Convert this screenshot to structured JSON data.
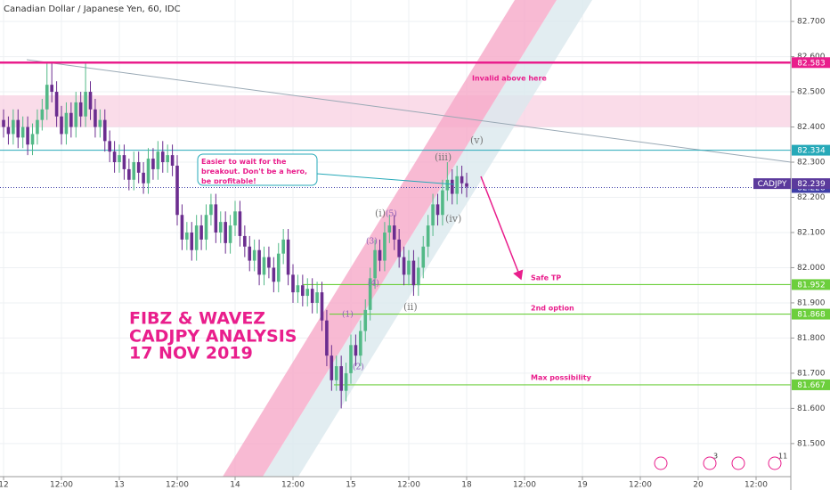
{
  "chart_data": {
    "type": "candlestick",
    "title": "Canadian Dollar / Japanese Yen, 60, IDC",
    "up_color": "#53b987",
    "down_color": "#6b2d8f",
    "x": [
      0,
      1,
      2,
      3,
      4,
      5,
      6,
      7,
      8,
      9,
      10,
      11,
      12,
      13,
      14,
      15,
      16,
      17,
      18,
      19,
      20,
      21,
      22,
      23,
      24,
      25,
      26,
      27,
      28,
      29,
      30,
      31,
      32,
      33,
      34,
      35,
      36,
      37,
      38,
      39,
      40,
      41,
      42,
      43,
      44,
      45,
      46,
      47,
      48,
      49,
      50,
      51,
      52,
      53,
      54,
      55,
      56,
      57,
      58,
      59,
      60,
      61,
      62,
      63,
      64,
      65,
      66,
      67,
      68,
      69,
      70,
      71,
      72,
      73,
      74,
      75,
      76,
      77,
      78,
      79,
      80,
      81,
      82,
      83,
      84,
      85,
      86,
      87,
      88,
      89,
      90,
      91,
      92,
      93,
      94,
      95,
      96
    ],
    "candles": [
      [
        82.42,
        82.45,
        82.37,
        82.4
      ],
      [
        82.4,
        82.43,
        82.35,
        82.38
      ],
      [
        82.38,
        82.45,
        82.35,
        82.42
      ],
      [
        82.42,
        82.45,
        82.34,
        82.37
      ],
      [
        82.37,
        82.43,
        82.34,
        82.4
      ],
      [
        82.4,
        82.43,
        82.32,
        82.35
      ],
      [
        82.35,
        82.41,
        82.32,
        82.38
      ],
      [
        82.38,
        82.45,
        82.35,
        82.42
      ],
      [
        82.42,
        82.48,
        82.39,
        82.45
      ],
      [
        82.45,
        82.58,
        82.42,
        82.52
      ],
      [
        82.52,
        82.58,
        82.47,
        82.5
      ],
      [
        82.5,
        82.53,
        82.4,
        82.43
      ],
      [
        82.43,
        82.46,
        82.35,
        82.38
      ],
      [
        82.38,
        82.47,
        82.35,
        82.44
      ],
      [
        82.44,
        82.47,
        82.37,
        82.4
      ],
      [
        82.4,
        82.5,
        82.37,
        82.47
      ],
      [
        82.47,
        82.5,
        82.4,
        82.43
      ],
      [
        82.43,
        82.58,
        82.4,
        82.5
      ],
      [
        82.5,
        82.53,
        82.42,
        82.45
      ],
      [
        82.45,
        82.48,
        82.37,
        82.4
      ],
      [
        82.4,
        82.45,
        82.37,
        82.42
      ],
      [
        82.42,
        82.45,
        82.33,
        82.36
      ],
      [
        82.36,
        82.39,
        82.3,
        82.33
      ],
      [
        82.33,
        82.36,
        82.27,
        82.3
      ],
      [
        82.3,
        82.35,
        82.27,
        82.32
      ],
      [
        82.32,
        82.35,
        82.25,
        82.28
      ],
      [
        82.28,
        82.31,
        82.22,
        82.25
      ],
      [
        82.25,
        82.33,
        82.22,
        82.3
      ],
      [
        82.3,
        82.33,
        82.24,
        82.27
      ],
      [
        82.27,
        82.3,
        82.21,
        82.24
      ],
      [
        82.24,
        82.34,
        82.21,
        82.31
      ],
      [
        82.31,
        82.34,
        82.25,
        82.28
      ],
      [
        82.28,
        82.36,
        82.25,
        82.33
      ],
      [
        82.33,
        82.36,
        82.27,
        82.3
      ],
      [
        82.3,
        82.35,
        82.27,
        82.32
      ],
      [
        82.32,
        82.35,
        82.26,
        82.29
      ],
      [
        82.29,
        82.32,
        82.12,
        82.15
      ],
      [
        82.15,
        82.18,
        82.05,
        82.08
      ],
      [
        82.08,
        82.13,
        82.05,
        82.1
      ],
      [
        82.1,
        82.13,
        82.02,
        82.05
      ],
      [
        82.05,
        82.15,
        82.02,
        82.12
      ],
      [
        82.12,
        82.15,
        82.05,
        82.08
      ],
      [
        82.08,
        82.18,
        82.05,
        82.15
      ],
      [
        82.15,
        82.21,
        82.12,
        82.18
      ],
      [
        82.18,
        82.21,
        82.07,
        82.1
      ],
      [
        82.1,
        82.16,
        82.07,
        82.13
      ],
      [
        82.13,
        82.16,
        82.04,
        82.07
      ],
      [
        82.07,
        82.15,
        82.04,
        82.12
      ],
      [
        82.12,
        82.19,
        82.09,
        82.16
      ],
      [
        82.16,
        82.19,
        82.06,
        82.09
      ],
      [
        82.09,
        82.12,
        82.03,
        82.06
      ],
      [
        82.06,
        82.09,
        81.99,
        82.02
      ],
      [
        82.02,
        82.08,
        81.99,
        82.05
      ],
      [
        82.05,
        82.08,
        81.95,
        81.98
      ],
      [
        81.98,
        82.06,
        81.95,
        82.03
      ],
      [
        82.03,
        82.06,
        81.97,
        82.0
      ],
      [
        82.0,
        82.03,
        81.93,
        81.96
      ],
      [
        81.96,
        82.07,
        81.93,
        82.04
      ],
      [
        82.04,
        82.11,
        82.01,
        82.08
      ],
      [
        82.08,
        82.11,
        81.95,
        81.98
      ],
      [
        81.98,
        82.01,
        81.9,
        81.93
      ],
      [
        81.93,
        81.98,
        81.9,
        81.95
      ],
      [
        81.95,
        81.98,
        81.89,
        81.92
      ],
      [
        81.92,
        81.97,
        81.89,
        81.94
      ],
      [
        81.94,
        81.97,
        81.87,
        81.9
      ],
      [
        81.9,
        81.96,
        81.87,
        81.93
      ],
      [
        81.93,
        81.96,
        81.82,
        81.85
      ],
      [
        81.85,
        81.88,
        81.72,
        81.75
      ],
      [
        81.75,
        81.78,
        81.65,
        81.68
      ],
      [
        81.68,
        81.75,
        81.65,
        81.72
      ],
      [
        81.72,
        81.75,
        81.6,
        81.65
      ],
      [
        81.65,
        81.73,
        81.62,
        81.7
      ],
      [
        81.7,
        81.81,
        81.67,
        81.78
      ],
      [
        81.78,
        81.81,
        81.72,
        81.75
      ],
      [
        81.75,
        81.85,
        81.72,
        81.82
      ],
      [
        81.82,
        81.91,
        81.79,
        81.88
      ],
      [
        81.88,
        82.0,
        81.85,
        81.97
      ],
      [
        81.97,
        82.08,
        81.94,
        82.05
      ],
      [
        82.05,
        82.08,
        81.99,
        82.02
      ],
      [
        82.02,
        82.13,
        81.99,
        82.1
      ],
      [
        82.1,
        82.15,
        82.07,
        82.12
      ],
      [
        82.12,
        82.15,
        82.05,
        82.08
      ],
      [
        82.08,
        82.11,
        82.0,
        82.03
      ],
      [
        82.03,
        82.06,
        81.95,
        81.98
      ],
      [
        81.98,
        82.05,
        81.95,
        82.02
      ],
      [
        82.02,
        82.05,
        81.92,
        81.95
      ],
      [
        81.95,
        82.03,
        81.92,
        82.0
      ],
      [
        82.0,
        82.09,
        81.97,
        82.06
      ],
      [
        82.06,
        82.15,
        82.03,
        82.12
      ],
      [
        82.12,
        82.21,
        82.09,
        82.18
      ],
      [
        82.18,
        82.21,
        82.12,
        82.15
      ],
      [
        82.15,
        82.25,
        82.12,
        82.22
      ],
      [
        82.22,
        82.3,
        82.19,
        82.25
      ],
      [
        82.25,
        82.28,
        82.18,
        82.21
      ],
      [
        82.21,
        82.29,
        82.18,
        82.26
      ],
      [
        82.26,
        82.29,
        82.21,
        82.24
      ],
      [
        82.24,
        82.27,
        82.2,
        82.23
      ]
    ],
    "xlim": [
      -0.74,
      163.2
    ],
    "xticks": [
      {
        "value": 0,
        "label": "12"
      },
      {
        "value": 12,
        "label": "12:00"
      },
      {
        "value": 24,
        "label": "13"
      },
      {
        "value": 36,
        "label": "12:00"
      },
      {
        "value": 48,
        "label": "14"
      },
      {
        "value": 60,
        "label": "12:00"
      },
      {
        "value": 72,
        "label": "15"
      },
      {
        "value": 84,
        "label": "12:00"
      },
      {
        "value": 96,
        "label": "18"
      },
      {
        "value": 108,
        "label": "12:00"
      },
      {
        "value": 120,
        "label": "19"
      },
      {
        "value": 132,
        "label": "12:00"
      },
      {
        "value": 144,
        "label": "20"
      },
      {
        "value": 156,
        "label": "12:00"
      }
    ],
    "ylim": [
      81.406,
      82.761
    ],
    "yticks": [
      {
        "value": 82.7,
        "label": "82.700"
      },
      {
        "value": 82.6,
        "label": "82.600"
      },
      {
        "value": 82.5,
        "label": "82.500"
      },
      {
        "value": 82.4,
        "label": "82.400"
      },
      {
        "value": 82.3,
        "label": "82.300"
      },
      {
        "value": 82.2,
        "label": "82.200"
      },
      {
        "value": 82.1,
        "label": "82.100"
      },
      {
        "value": 82,
        "label": "82.000"
      },
      {
        "value": 81.9,
        "label": "81.900"
      },
      {
        "value": 81.8,
        "label": "81.800"
      },
      {
        "value": 81.7,
        "label": "81.700"
      },
      {
        "value": 81.6,
        "label": "81.600"
      },
      {
        "value": 81.5,
        "label": "81.500"
      }
    ],
    "grid": true,
    "zone": [
      82.4,
      82.49
    ],
    "levels": [
      {
        "value": 82.583,
        "color": "#e91e8c"
      },
      {
        "value": 82.334,
        "color": "#26a9b8"
      },
      {
        "value": 82.228,
        "color": "#3f3fa8"
      },
      {
        "value": 81.952,
        "color": "#6ccf3c"
      },
      {
        "value": 81.868,
        "color": "#6ccf3c"
      },
      {
        "value": 81.667,
        "color": "#6ccf3c"
      }
    ],
    "last": {
      "name": "CADJPY",
      "value": 82.239,
      "color": "#5b3a9c"
    },
    "annotations": {
      "invalid": "Invalid above here",
      "note": "Easier to wait for the breakout. Don't be a hero, be profitable!",
      "safe": "Safe TP",
      "second": "2nd option",
      "max": "Max possibility",
      "headline": [
        "FIBZ & WAVEZ",
        "CADJPY ANALYSIS",
        "17 NOV 2019"
      ]
    },
    "waves": [
      "(v)",
      "(iii)",
      "(iv)",
      "(i)",
      "(5)",
      "(ii)",
      "(3)",
      "(4)",
      "(1)",
      "(2)"
    ],
    "badges": [
      "3",
      "11"
    ]
  }
}
